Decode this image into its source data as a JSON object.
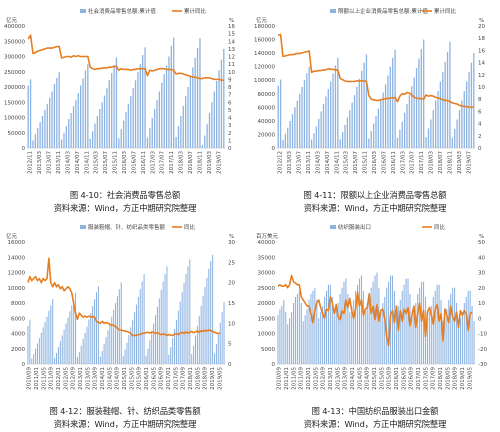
{
  "figures": [
    {
      "caption": "图 4-10：社会消费品零售总额",
      "source": "资料来源：Wind，方正中期研究院整理"
    },
    {
      "caption": "图 4-11：限额以上企业消费品零售总额",
      "source": "资料来源：Wind，方正中期研究院整理"
    },
    {
      "caption": "图 4-12：服装鞋帽、针、纺织品类零售额",
      "source": "资料来源：Wind，方正中期研究院整理"
    },
    {
      "caption": "图 4-13：中国纺织品服装出口金额",
      "source": "资料来源：Wind，方正中期研究院整理"
    }
  ],
  "colors": {
    "bar": "#8db3e2",
    "line": "#e67e22",
    "axis": "#bbbbbb"
  },
  "chart_data": [
    {
      "type": "bar",
      "title": "",
      "left_unit": "亿元",
      "right_unit": "%",
      "series": [
        {
          "name": "社会消费品零售总额:累计值",
          "axis": "left",
          "type": "bar",
          "values": [
            205000,
            225000,
            25000,
            45000,
            65000,
            85000,
            105000,
            125000,
            145000,
            165000,
            185000,
            210000,
            230000,
            250000,
            28000,
            50000,
            72000,
            95000,
            115000,
            137000,
            158000,
            180000,
            205000,
            228000,
            255000,
            275000,
            30000,
            55000,
            80000,
            105000,
            128000,
            150000,
            172000,
            196000,
            222000,
            246000,
            272000,
            297000,
            32000,
            62000,
            90000,
            118000,
            145000,
            170000,
            196000,
            222000,
            250000,
            275000,
            305000,
            330000,
            34000,
            66000,
            98000,
            128000,
            157000,
            185000,
            214000,
            242000,
            270000,
            300000,
            335000,
            362000,
            36000,
            72000,
            105000,
            138000,
            170000,
            200000,
            232000,
            264000,
            295000,
            328000,
            360000,
            10000,
            41000,
            78000,
            115000,
            150000,
            185000,
            220000,
            255000,
            290000,
            325000
          ]
        },
        {
          "name": "累计同比",
          "axis": "right",
          "type": "line",
          "values": [
            14.3,
            14.8,
            12.4,
            12.5,
            12.7,
            12.8,
            12.9,
            13.0,
            13.1,
            13.1,
            13.1,
            13.2,
            13.3,
            13.3,
            11.8,
            11.9,
            12.0,
            12.0,
            11.9,
            12.1,
            12.0,
            12.1,
            12.0,
            12.0,
            12.0,
            12.0,
            10.6,
            10.4,
            10.3,
            10.4,
            10.4,
            10.5,
            10.5,
            10.5,
            10.6,
            10.6,
            10.7,
            10.7,
            10.2,
            10.4,
            10.3,
            10.3,
            10.3,
            10.2,
            10.3,
            10.3,
            10.4,
            10.4,
            10.4,
            10.4,
            9.5,
            10.2,
            10.1,
            10.2,
            10.3,
            10.4,
            10.4,
            10.4,
            10.3,
            10.3,
            10.3,
            10.2,
            9.7,
            9.8,
            9.8,
            9.7,
            9.6,
            9.5,
            9.4,
            9.3,
            9.3,
            9.2,
            9.1,
            9.1,
            9.2,
            9.2,
            9.2,
            9.1,
            9.0,
            9.0,
            9.0,
            8.9,
            8.9
          ]
        }
      ],
      "x_tick_labels": [
        "2012/11",
        "2013/03",
        "2013/07",
        "2013/11",
        "2014/03",
        "2014/07",
        "2014/11",
        "2015/03",
        "2015/07",
        "2015/11",
        "2016/03",
        "2016/07",
        "2016/11",
        "2017/03",
        "2017/07",
        "2017/11",
        "2018/03",
        "2018/07",
        "2018/11",
        "2019/03",
        "2019/07"
      ],
      "ylim_left": [
        0,
        400000
      ],
      "yticks_left": [
        0,
        50000,
        100000,
        150000,
        200000,
        250000,
        300000,
        350000,
        400000
      ],
      "ylim_right": [
        0,
        16
      ],
      "yticks_right": [
        0,
        1,
        2,
        3,
        4,
        5,
        6,
        7,
        8,
        9,
        10,
        11,
        12,
        13,
        14,
        15,
        16
      ],
      "legend_position": "top-center",
      "grid": false
    },
    {
      "type": "bar",
      "title": "",
      "left_unit": "亿元",
      "right_unit": "%",
      "series": [
        {
          "name": "限额以上企业消费品零售总额:累计值",
          "axis": "left",
          "type": "bar",
          "values": [
            92000,
            101000,
            12000,
            21000,
            30000,
            40000,
            50000,
            60000,
            70000,
            80000,
            90000,
            100000,
            110000,
            120000,
            12500,
            22000,
            32000,
            43000,
            54000,
            65000,
            76000,
            87000,
            98000,
            110000,
            122000,
            133000,
            13000,
            23500,
            34000,
            45000,
            56000,
            67000,
            78000,
            90000,
            102000,
            114000,
            126000,
            138000,
            14000,
            25000,
            36000,
            47000,
            58000,
            70000,
            82000,
            94000,
            107000,
            120000,
            133000,
            145000,
            15000,
            27000,
            39000,
            52000,
            65000,
            78000,
            91000,
            104000,
            118000,
            132000,
            146000,
            160000,
            16000,
            29000,
            42000,
            56000,
            70000,
            84000,
            98000,
            112000,
            127000,
            142000,
            157000,
            15000,
            28000,
            42000,
            56000,
            70000,
            84000,
            98000,
            112000,
            126000,
            140000
          ]
        },
        {
          "name": "累计同比",
          "axis": "right",
          "type": "line",
          "values": [
            18.5,
            18.6,
            15.0,
            15.1,
            15.2,
            15.3,
            15.3,
            15.4,
            15.5,
            15.5,
            15.6,
            15.7,
            15.8,
            15.9,
            12.4,
            12.6,
            12.6,
            12.7,
            12.7,
            12.8,
            12.8,
            13.0,
            12.9,
            12.9,
            12.8,
            12.8,
            11.4,
            11.2,
            11.0,
            10.9,
            10.9,
            10.9,
            10.9,
            11.0,
            11.0,
            11.0,
            11.0,
            10.9,
            8.6,
            8.0,
            7.9,
            7.8,
            7.8,
            7.9,
            8.0,
            8.1,
            8.1,
            8.2,
            8.2,
            8.3,
            7.6,
            8.5,
            8.9,
            8.8,
            9.1,
            9.0,
            8.7,
            8.3,
            8.2,
            8.1,
            8.1,
            8.0,
            8.7,
            8.5,
            8.6,
            8.5,
            8.3,
            8.2,
            8.1,
            7.9,
            7.8,
            7.8,
            7.6,
            7.4,
            7.3,
            7.2,
            7.0,
            6.9,
            6.8,
            6.8,
            6.7,
            6.7,
            6.7
          ]
        }
      ],
      "x_tick_labels": [
        "2012/12",
        "2013/03",
        "2013/07",
        "2013/11",
        "2014/03",
        "2014/07",
        "2014/11",
        "2015/03",
        "2015/07",
        "2015/11",
        "2016/03",
        "2016/07",
        "2016/11",
        "2017/03",
        "2017/07",
        "2017/11",
        "2018/03",
        "2018/07",
        "2018/11",
        "2019/03",
        "2019/07"
      ],
      "ylim_left": [
        0,
        180000
      ],
      "yticks_left": [
        0,
        20000,
        40000,
        60000,
        80000,
        100000,
        120000,
        140000,
        160000,
        180000
      ],
      "ylim_right": [
        0,
        20
      ],
      "yticks_right": [
        0,
        2,
        4,
        6,
        8,
        10,
        12,
        14,
        16,
        18,
        20
      ],
      "legend_position": "top-center",
      "grid": false
    },
    {
      "type": "bar",
      "title": "",
      "left_unit": "亿元",
      "right_unit": "%",
      "series": [
        {
          "name": "服装鞋帽、针、纺织品类零售额",
          "axis": "left",
          "type": "bar",
          "values": [
            5000,
            5800,
            700,
            1300,
            2000,
            2700,
            3400,
            4100,
            4800,
            5500,
            6200,
            7000,
            7700,
            8500,
            800,
            1450,
            2200,
            3000,
            3750,
            4500,
            5300,
            6100,
            6900,
            7700,
            8500,
            9300,
            900,
            1600,
            2400,
            3300,
            4100,
            4900,
            5800,
            6700,
            7600,
            8500,
            9400,
            10200,
            950,
            1700,
            2600,
            3500,
            4400,
            5300,
            6200,
            7100,
            8000,
            8900,
            9800,
            10700,
            1050,
            1900,
            2800,
            3800,
            4800,
            5800,
            6800,
            7800,
            8800,
            9800,
            10800,
            11800,
            1100,
            2000,
            3100,
            4200,
            5300,
            6400,
            7500,
            8600,
            9700,
            10800,
            11800,
            12800,
            1200,
            2200,
            3400,
            4600,
            5800,
            7000,
            8200,
            9400,
            10600,
            11800,
            12800,
            13700,
            1300,
            2400,
            3700,
            5000,
            6300,
            7600,
            8900,
            10100,
            11300,
            12500,
            13500,
            14300,
            1400,
            2600,
            4000,
            5400,
            6800,
            8100
          ]
        },
        {
          "name": "同比",
          "axis": "right",
          "type": "line",
          "values": [
            20,
            21.5,
            20.5,
            21,
            21.5,
            20.5,
            21,
            20,
            21,
            20.5,
            21,
            26,
            20,
            19,
            20,
            19,
            19.5,
            18.5,
            19,
            18,
            18.5,
            19,
            18.5,
            17.5,
            15,
            12.5,
            11,
            12.5,
            12,
            11.5,
            11.8,
            11.5,
            11.8,
            11.5,
            11.7,
            11.5,
            10.5,
            10.2,
            10,
            10.5,
            10,
            10.2,
            10,
            9.8,
            9.5,
            9.6,
            9.2,
            8.8,
            8.4,
            8.3,
            8.2,
            8.1,
            8,
            7.8,
            7.5,
            7,
            7,
            7.1,
            7.2,
            7.3,
            7.5,
            7.6,
            7.7,
            7.8,
            7.6,
            7.9,
            7.8,
            7.5,
            7.7,
            7.4,
            7.2,
            7.4,
            7.3,
            7,
            7.2,
            7.1,
            7,
            7.3,
            7.5,
            7.2,
            7.6,
            7.8,
            7.5,
            7.9,
            7.6,
            7.8,
            8.0,
            7.7,
            7.9,
            8.1,
            7.8,
            8.2,
            8.0,
            8.3,
            8.1,
            8.4,
            8.2,
            8.0,
            7.8,
            7.6,
            7.5,
            7.6
          ]
        }
      ],
      "x_tick_labels": [
        "2010/09",
        "2011/01",
        "2011/05",
        "2011/09",
        "2012/01",
        "2012/05",
        "2012/09",
        "2013/01",
        "2013/05",
        "2013/09",
        "2014/01",
        "2014/05",
        "2014/09",
        "2015/01",
        "2015/05",
        "2015/09",
        "2016/01",
        "2016/05",
        "2016/09",
        "2017/01",
        "2017/05",
        "2017/09",
        "2018/01",
        "2018/05",
        "2018/09",
        "2019/01",
        "2019/05"
      ],
      "ylim_left": [
        0,
        16000
      ],
      "yticks_left": [
        0,
        2000,
        4000,
        6000,
        8000,
        10000,
        12000,
        14000,
        16000
      ],
      "ylim_right": [
        0,
        30
      ],
      "yticks_right": [
        0,
        5,
        10,
        15,
        20,
        25,
        30
      ],
      "legend_position": "top-center",
      "grid": false
    },
    {
      "type": "bar",
      "title": "",
      "left_unit": "百万美元",
      "right_unit": "%",
      "series": [
        {
          "name": "纺织服装出口",
          "axis": "left",
          "type": "bar",
          "values": [
            16000,
            18000,
            19000,
            21000,
            17000,
            13000,
            15000,
            17000,
            20000,
            22000,
            23000,
            24000,
            20000,
            14000,
            16000,
            18000,
            21000,
            23000,
            24000,
            25000,
            21000,
            15000,
            17000,
            19000,
            22000,
            24000,
            26000,
            26000,
            22000,
            16000,
            18000,
            20000,
            23000,
            25000,
            27000,
            28000,
            23000,
            17000,
            19000,
            21000,
            24000,
            26000,
            28000,
            29000,
            24000,
            18000,
            20000,
            22000,
            25000,
            27000,
            29000,
            30000,
            25000,
            18000,
            20000,
            22000,
            25000,
            27000,
            29000,
            29000,
            24000,
            17000,
            19000,
            21000,
            24000,
            26000,
            28000,
            28000,
            23000,
            16000,
            18000,
            20000,
            23000,
            25000,
            27000,
            27000,
            22000,
            15000,
            17000,
            19000,
            22000,
            24000,
            26000,
            26000,
            21000,
            14000,
            16000,
            18000,
            21000,
            23000,
            25000,
            25000,
            20000,
            13000,
            15000,
            17000,
            20000,
            22000,
            24000,
            24000,
            19000,
            14000
          ]
        },
        {
          "name": "同比",
          "axis": "right",
          "type": "line",
          "values": [
            21,
            22,
            21,
            21,
            22,
            20,
            22,
            28,
            24,
            23,
            22,
            22,
            14,
            12,
            10,
            8,
            8,
            3,
            -3,
            5,
            10,
            12,
            7,
            3,
            0,
            6,
            5,
            14,
            10,
            3,
            9,
            1,
            -1,
            5,
            3,
            12,
            7,
            13,
            5,
            0,
            6,
            17,
            8,
            12,
            2,
            6,
            7,
            16,
            3,
            8,
            -1,
            9,
            -2,
            5,
            6,
            0,
            -12,
            -18,
            2,
            5,
            -3,
            8,
            -8,
            5,
            -2,
            6,
            3,
            7,
            -5,
            2,
            8,
            -6,
            3,
            10,
            -2,
            5,
            -12,
            4,
            7,
            2,
            -4,
            6,
            9,
            -2,
            3,
            -15,
            6,
            2,
            -3,
            8,
            1,
            -2,
            4,
            -6,
            5,
            2,
            5,
            3,
            -8,
            3,
            4
          ]
        }
      ],
      "x_tick_labels": [
        "2010/09",
        "2011/01",
        "2011/05",
        "2011/09",
        "2012/01",
        "2012/05",
        "2012/09",
        "2013/01",
        "2013/05",
        "2013/09",
        "2014/01",
        "2014/05",
        "2014/09",
        "2015/01",
        "2015/05",
        "2015/09",
        "2016/01",
        "2016/05",
        "2016/09",
        "2017/01",
        "2017/05",
        "2017/09",
        "2018/01",
        "2018/05",
        "2018/09",
        "2019/01",
        "2019/05"
      ],
      "ylim_left": [
        0,
        40000
      ],
      "yticks_left": [
        0,
        5000,
        10000,
        15000,
        20000,
        25000,
        30000,
        35000,
        40000
      ],
      "ylim_right": [
        -30,
        50
      ],
      "yticks_right": [
        -30,
        -20,
        -10,
        0,
        10,
        20,
        30,
        40,
        50
      ],
      "legend_position": "top-center",
      "grid": false
    }
  ]
}
